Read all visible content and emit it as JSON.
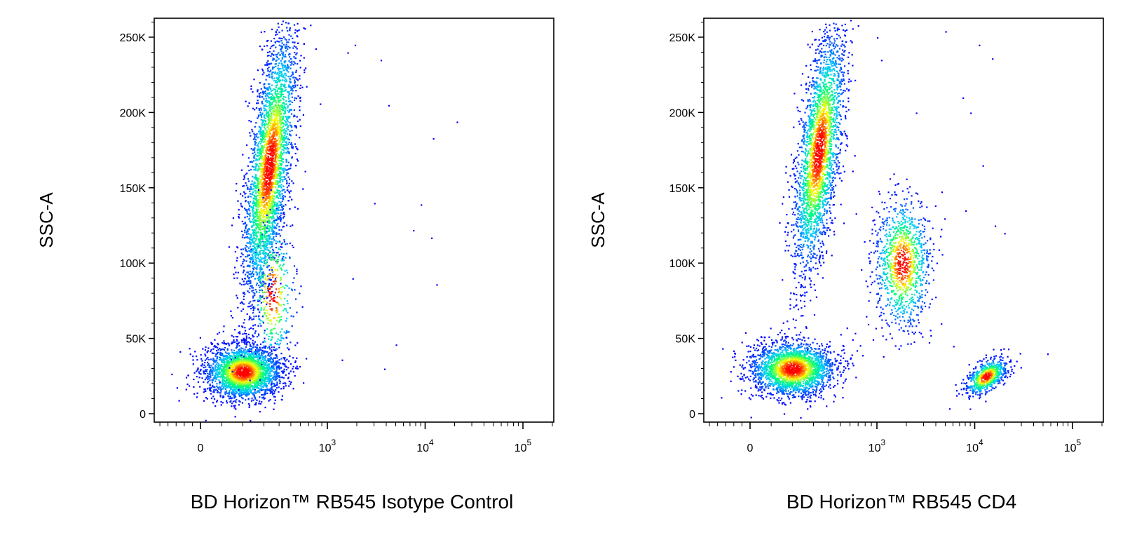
{
  "chart_data": [
    {
      "type": "scatter",
      "title": "",
      "xlabel": "BD Horizon™ RB545 Isotype Control",
      "ylabel": "SSC-A",
      "x_scale": "biexponential",
      "x_ticks": [
        "0",
        "10^3",
        "10^4",
        "10^5"
      ],
      "y_ticks": [
        "0",
        "50K",
        "100K",
        "150K",
        "200K",
        "250K"
      ],
      "ylim": [
        0,
        262144
      ],
      "grid": false,
      "legend": "none",
      "color_scale": [
        "#0000ff",
        "#00c8ff",
        "#00ff80",
        "#ffff00",
        "#ff0000"
      ],
      "populations": [
        {
          "label": "",
          "x_center": 200,
          "y_center": 28000,
          "x_spread": 90,
          "y_spread": 9000,
          "count": 2600
        },
        {
          "label": "",
          "x_center": 330,
          "y_center": 165000,
          "x_spread": 70,
          "y_spread": 45000,
          "count": 3300
        },
        {
          "label": "",
          "x_center": 350,
          "y_center": 80000,
          "x_spread": 80,
          "y_spread": 25000,
          "count": 400
        }
      ],
      "outliers": [
        {
          "x": 1600,
          "y": 240000
        },
        {
          "x": 1900,
          "y": 245000
        },
        {
          "x": 3500,
          "y": 235000
        },
        {
          "x": 4200,
          "y": 205000
        },
        {
          "x": 12000,
          "y": 183000
        },
        {
          "x": 21000,
          "y": 194000
        },
        {
          "x": 3000,
          "y": 140000
        },
        {
          "x": 9000,
          "y": 139000
        },
        {
          "x": 7500,
          "y": 122000
        },
        {
          "x": 11500,
          "y": 117000
        },
        {
          "x": 13000,
          "y": 86000
        },
        {
          "x": 1800,
          "y": 90000
        },
        {
          "x": 5000,
          "y": 46000
        },
        {
          "x": 3800,
          "y": 30000
        },
        {
          "x": 1400,
          "y": 36000
        }
      ]
    },
    {
      "type": "scatter",
      "title": "",
      "xlabel": "BD Horizon™ RB545 CD4",
      "ylabel": "SSC-A",
      "x_scale": "biexponential",
      "x_ticks": [
        "0",
        "10^3",
        "10^4",
        "10^5"
      ],
      "y_ticks": [
        "0",
        "50K",
        "100K",
        "150K",
        "200K",
        "250K"
      ],
      "ylim": [
        0,
        262144
      ],
      "grid": false,
      "legend": "none",
      "color_scale": [
        "#0000ff",
        "#00c8ff",
        "#00ff80",
        "#ffff00",
        "#ff0000"
      ],
      "populations": [
        {
          "label": "",
          "x_center": 200,
          "y_center": 30000,
          "x_spread": 100,
          "y_spread": 9000,
          "count": 2300
        },
        {
          "label": "",
          "x_center": 330,
          "y_center": 175000,
          "x_spread": 70,
          "y_spread": 40000,
          "count": 2700
        },
        {
          "label": "",
          "x_center": 1800,
          "y_center": 100000,
          "x_spread": 700,
          "y_spread": 22000,
          "count": 1100
        },
        {
          "label": "",
          "x_center": 13000,
          "y_center": 25000,
          "x_spread": 3000,
          "y_spread": 6000,
          "count": 650
        }
      ],
      "outliers": [
        {
          "x": 1000,
          "y": 250000
        },
        {
          "x": 1100,
          "y": 235000
        },
        {
          "x": 5000,
          "y": 254000
        },
        {
          "x": 11000,
          "y": 245000
        },
        {
          "x": 15000,
          "y": 236000
        },
        {
          "x": 7500,
          "y": 210000
        },
        {
          "x": 9000,
          "y": 200000
        },
        {
          "x": 12000,
          "y": 165000
        },
        {
          "x": 16000,
          "y": 125000
        },
        {
          "x": 20000,
          "y": 120000
        },
        {
          "x": 55000,
          "y": 40000
        },
        {
          "x": 4500,
          "y": 60000
        },
        {
          "x": 6000,
          "y": 45000
        },
        {
          "x": 2500,
          "y": 200000
        },
        {
          "x": 8000,
          "y": 135000
        }
      ]
    }
  ]
}
